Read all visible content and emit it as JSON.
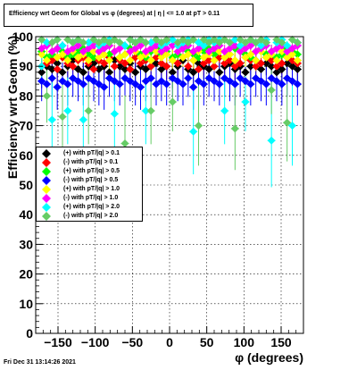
{
  "title": "Efficiency wrt Geom for Global vs φ (degrees) at |  η | <= 1.0 at pT > 0.11",
  "footer": "Fri Dec 31 13:14:26 2021",
  "chart_data": {
    "type": "scatter",
    "xlabel": "φ (degrees)",
    "ylabel": "Efficiency wrt Geom (%)",
    "xlim": [
      -180,
      180
    ],
    "ylim": [
      0,
      100
    ],
    "xticks": [
      -150,
      -100,
      -50,
      0,
      50,
      100,
      150
    ],
    "yticks": [
      0,
      10,
      20,
      30,
      40,
      50,
      60,
      70,
      80,
      90,
      100
    ],
    "grid": true,
    "legend_position": "left-middle",
    "x": [
      -172,
      -165,
      -158,
      -151,
      -144,
      -137,
      -130,
      -123,
      -116,
      -109,
      -102,
      -95,
      -88,
      -81,
      -74,
      -67,
      -60,
      -53,
      -46,
      -39,
      -32,
      -25,
      -18,
      -11,
      -4,
      4,
      11,
      18,
      25,
      32,
      39,
      46,
      53,
      60,
      67,
      74,
      81,
      88,
      95,
      102,
      109,
      116,
      123,
      130,
      137,
      144,
      151,
      158,
      165,
      172
    ],
    "series": [
      {
        "name": "(+) with pT/|q| > 0.1",
        "color": "#000000",
        "marker": "diamond",
        "values": [
          88,
          90,
          89,
          91,
          88,
          90,
          92,
          89,
          88,
          90,
          91,
          89,
          90,
          88,
          92,
          90,
          89,
          91,
          88,
          90,
          89,
          90,
          91,
          89,
          90,
          88,
          90,
          92,
          89,
          88,
          91,
          90,
          89,
          92,
          88,
          90,
          91,
          89,
          90,
          88,
          90,
          92,
          89,
          91,
          90,
          88,
          89,
          91,
          90,
          89
        ]
      },
      {
        "name": "(-) with pT/|q| > 0.1",
        "color": "#ff0000",
        "marker": "diamond",
        "values": [
          90,
          91,
          92,
          89,
          93,
          91,
          90,
          92,
          93,
          91,
          89,
          92,
          91,
          93,
          90,
          92,
          91,
          89,
          93,
          91,
          92,
          90,
          93,
          91,
          90,
          92,
          91,
          93,
          90,
          92,
          89,
          91,
          92,
          90,
          93,
          91,
          92,
          90,
          91,
          93,
          92,
          90,
          91,
          93,
          92,
          90,
          91,
          93,
          92,
          91
        ]
      },
      {
        "name": "(+) with pT/|q| > 0.5",
        "color": "#00ff00",
        "marker": "diamond",
        "values": [
          95,
          93,
          94,
          96,
          95,
          93,
          94,
          95,
          96,
          94,
          93,
          95,
          96,
          94,
          95,
          93,
          94,
          96,
          95,
          94,
          93,
          95,
          96,
          94,
          95,
          93,
          94,
          96,
          95,
          94,
          93,
          95,
          96,
          94,
          95,
          93,
          94,
          96,
          95,
          94,
          93,
          95,
          96,
          94,
          95,
          93,
          94,
          96,
          95,
          94
        ]
      },
      {
        "name": "(-) with pT/|q| > 0.5",
        "color": "#0000ff",
        "marker": "diamond",
        "values": [
          85,
          84,
          86,
          83,
          85,
          84,
          86,
          85,
          84,
          86,
          85,
          84,
          83,
          86,
          85,
          84,
          86,
          85,
          84,
          83,
          85,
          86,
          84,
          85,
          84,
          86,
          85,
          84,
          86,
          83,
          85,
          84,
          86,
          85,
          84,
          86,
          85,
          84,
          86,
          85,
          84,
          86,
          85,
          84,
          86,
          85,
          84,
          86,
          85,
          84
        ]
      },
      {
        "name": "(+) with pT/|q| > 1.0",
        "color": "#ffff00",
        "marker": "diamond",
        "values": [
          94,
          92,
          95,
          93,
          94,
          92,
          95,
          93,
          94,
          92,
          95,
          93,
          94,
          92,
          95,
          93,
          94,
          92,
          95,
          93,
          94,
          92,
          95,
          93,
          94,
          92,
          95,
          93,
          94,
          92,
          95,
          93,
          94,
          92,
          95,
          93,
          94,
          92,
          95,
          93,
          94,
          92,
          95,
          93,
          94,
          92,
          95,
          93,
          94,
          92
        ]
      },
      {
        "name": "(-) with pT/|q| > 1.0",
        "color": "#ff00ff",
        "marker": "diamond",
        "values": [
          96,
          97,
          95,
          96,
          97,
          95,
          96,
          97,
          95,
          96,
          97,
          95,
          96,
          97,
          95,
          96,
          97,
          95,
          96,
          97,
          95,
          96,
          97,
          95,
          96,
          97,
          95,
          96,
          97,
          95,
          96,
          97,
          95,
          96,
          97,
          95,
          96,
          97,
          95,
          96,
          97,
          95,
          96,
          97,
          95,
          96,
          97,
          95,
          96,
          97
        ]
      },
      {
        "name": "(+) with pT/|q| > 2.0",
        "color": "#00ffff",
        "marker": "diamond",
        "values": [
          90,
          98,
          72,
          99,
          97,
          75,
          98,
          99,
          72,
          98,
          99,
          97,
          98,
          99,
          74,
          98,
          97,
          99,
          98,
          99,
          75,
          98,
          99,
          97,
          98,
          99,
          97,
          98,
          99,
          68,
          98,
          97,
          99,
          98,
          99,
          75,
          98,
          99,
          97,
          78,
          99,
          98,
          97,
          99,
          65,
          98,
          99,
          97,
          70,
          98
        ]
      },
      {
        "name": "(-) with pT/|q| > 2.0",
        "color": "#66cc66",
        "marker": "diamond",
        "values": [
          99,
          80,
          98,
          99,
          73,
          99,
          98,
          99,
          98,
          75,
          99,
          98,
          99,
          98,
          99,
          98,
          64,
          99,
          98,
          99,
          98,
          75,
          99,
          98,
          99,
          78,
          98,
          99,
          98,
          99,
          70,
          99,
          98,
          99,
          98,
          99,
          98,
          69,
          99,
          98,
          99,
          98,
          99,
          98,
          82,
          99,
          98,
          71,
          99,
          98
        ]
      }
    ]
  }
}
